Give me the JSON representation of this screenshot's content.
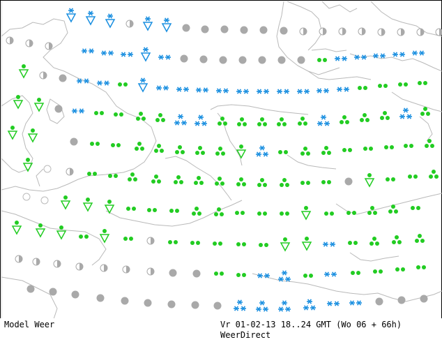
{
  "map": {
    "colors": {
      "coast": "#b9b9b9",
      "frame": "#000000",
      "rain": "#22cc22",
      "snow": "#1a8fe0",
      "cloud": "#a9a9a9",
      "partly": "#a9a9a9",
      "fog_circle": "#bbbbbb"
    },
    "legend_icons": [
      "rain-dots-icon",
      "showers-triangle-icon",
      "snow-asterisk-icon",
      "overcast-disc-icon",
      "partly-cloudy-half-disc-icon",
      "clear-circle-icon"
    ]
  },
  "footer": {
    "left": "Model Weer",
    "right": "Vr 01-02-13 18..24 GMT (Wo 06 + 66h)",
    "brand": "WeerDirect"
  }
}
